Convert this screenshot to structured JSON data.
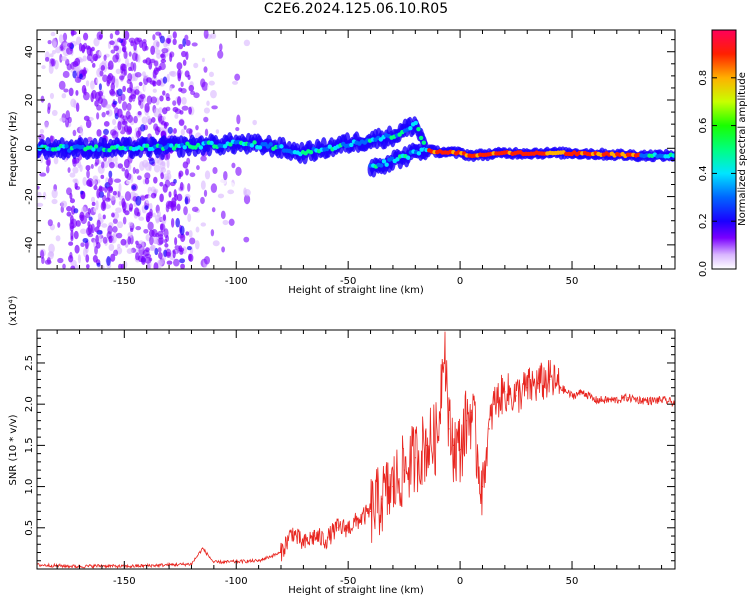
{
  "title": "C2E6.2024.125.06.10.R05",
  "chart_data": [
    {
      "type": "heatmap",
      "xlabel": "Height of straight line (km)",
      "ylabel": "Frequency (Hz)",
      "xlim": [
        -189,
        96
      ],
      "ylim": [
        -50,
        49
      ],
      "xticks": [
        -150,
        -100,
        -50,
        0,
        50
      ],
      "yticks": [
        -40,
        -20,
        0,
        20,
        40
      ],
      "colorbar": {
        "label": "Normalized spectral amplitude",
        "range": [
          0,
          1
        ],
        "ticks": [
          0.0,
          0.2,
          0.4,
          0.6,
          0.8
        ],
        "ticklabels": [
          "0.0",
          "0.2",
          "0.4",
          "0.6",
          "0.8"
        ]
      },
      "ridges": [
        {
          "x": [
            -189,
            -150,
            -120,
            -100,
            -85,
            -70,
            -50,
            -30,
            -20,
            -15
          ],
          "y": [
            0,
            0,
            1,
            2,
            1,
            -2,
            2,
            5,
            10,
            0
          ]
        },
        {
          "x": [
            -40,
            -30,
            -20,
            -15
          ],
          "y": [
            -8,
            -5,
            -2,
            0
          ]
        },
        {
          "x": [
            -15,
            0,
            5,
            20,
            50,
            80,
            96
          ],
          "y": [
            -1,
            -2,
            -3,
            -2,
            -2,
            -3,
            -3
          ]
        }
      ]
    },
    {
      "type": "line",
      "xlabel": "Height of straight line (km)",
      "ylabel": "SNR (10 * v/v)",
      "y_multiplier": "(x10⁴)",
      "xlim": [
        -189,
        96
      ],
      "ylim": [
        0,
        2.9
      ],
      "xticks": [
        -150,
        -100,
        -50,
        0,
        50
      ],
      "yticks": [
        0.5,
        1.0,
        1.5,
        2.0,
        2.5
      ],
      "yticklabels": [
        "0.5",
        "1.0",
        "1.5",
        "2.0",
        "2.5"
      ],
      "color": "#e8251f",
      "series": [
        {
          "x": [
            -189,
            -180,
            -170,
            -160,
            -150,
            -140,
            -130,
            -120,
            -115,
            -110,
            -100,
            -90,
            -85,
            -80,
            -75,
            -70,
            -65,
            -60,
            -55,
            -50,
            -45,
            -40,
            -35,
            -30,
            -25,
            -20,
            -15,
            -10,
            -7,
            -5,
            -3,
            0,
            3,
            5,
            10,
            13,
            15,
            20,
            25,
            30,
            35,
            40,
            45,
            50,
            55,
            60,
            65,
            70,
            75,
            80,
            85,
            90,
            96
          ],
          "y": [
            0.05,
            0.04,
            0.03,
            0.04,
            0.03,
            0.04,
            0.05,
            0.06,
            0.25,
            0.08,
            0.09,
            0.1,
            0.15,
            0.2,
            0.45,
            0.3,
            0.4,
            0.35,
            0.5,
            0.5,
            0.6,
            0.7,
            0.85,
            1.0,
            1.2,
            1.35,
            1.5,
            1.6,
            2.9,
            1.7,
            1.5,
            1.45,
            1.8,
            1.9,
            1.0,
            1.7,
            2.0,
            2.15,
            2.1,
            2.2,
            2.25,
            2.3,
            2.2,
            2.1,
            2.15,
            2.05,
            2.05,
            2.05,
            2.08,
            2.05,
            2.04,
            2.05,
            2.02
          ]
        }
      ]
    }
  ]
}
